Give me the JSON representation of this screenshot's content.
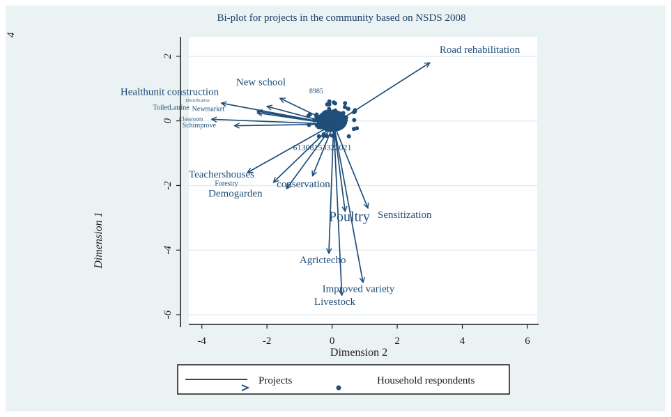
{
  "chart_data": {
    "type": "scatter",
    "subtype": "biplot",
    "title": "Bi-plot for projects in the community based on NSDS 2008",
    "xlabel": "Dimension 2",
    "ylabel": "Dimension 1",
    "xlim": [
      -4.4,
      6.3
    ],
    "ylim": [
      -6.3,
      2.6
    ],
    "x_ticks": [
      -4,
      -2,
      0,
      2,
      4,
      6
    ],
    "x_tick_labels": [
      "-4",
      "-2",
      "0",
      "2",
      "4",
      "6"
    ],
    "y_ticks": [
      -6,
      -4,
      -2,
      0,
      2
    ],
    "y_tick_labels": [
      "-6",
      "-4",
      "-2",
      "0",
      "2"
    ],
    "top_left_tick_label": "4",
    "grid": true,
    "legend_placement": "bottom",
    "colors": {
      "series": "#1f4e79",
      "background": "#eaf2f3",
      "plot_background": "#ffffff",
      "grid": "#e3ecee"
    },
    "series": [
      {
        "name": "Projects",
        "marker": "arrow"
      },
      {
        "name": "Household respondents",
        "marker": "dot"
      }
    ],
    "projects": [
      {
        "label": "Road rehabilitation",
        "x": 3.0,
        "y": 1.8,
        "label_x": 3.3,
        "label_y": 2.1,
        "font_size": 15
      },
      {
        "label": "New school",
        "x": -1.6,
        "y": 0.7,
        "label_x": -2.95,
        "label_y": 1.1,
        "font_size": 15
      },
      {
        "label": "Healthunit construction",
        "x": -3.4,
        "y": 0.55,
        "label_x": -6.5,
        "label_y": 0.8,
        "font_size": 15
      },
      {
        "label": "Electrification",
        "x": -2.0,
        "y": 0.45,
        "label_x": -4.5,
        "label_y": 0.6,
        "font_size": 6
      },
      {
        "label": "ToiletLatrine",
        "x": -2.3,
        "y": 0.3,
        "label_x": -5.5,
        "label_y": 0.35,
        "font_size": 10
      },
      {
        "label": "Newmarket",
        "x": -2.3,
        "y": 0.25,
        "label_x": -4.3,
        "label_y": 0.3,
        "font_size": 10
      },
      {
        "label": "Classroom",
        "x": -3.7,
        "y": 0.05,
        "label_x": -4.7,
        "label_y": 0.0,
        "font_size": 8
      },
      {
        "label": "Schimprove",
        "x": -3.0,
        "y": -0.15,
        "label_x": -4.6,
        "label_y": -0.2,
        "font_size": 10
      },
      {
        "label": "Teachershouses",
        "x": -2.6,
        "y": -1.6,
        "label_x": -4.4,
        "label_y": -1.75,
        "font_size": 15
      },
      {
        "label": "Forestry",
        "x": -1.8,
        "y": -1.9,
        "label_x": -3.6,
        "label_y": -2.0,
        "font_size": 10
      },
      {
        "label": "Demogarden",
        "x": -1.4,
        "y": -2.1,
        "label_x": -3.8,
        "label_y": -2.35,
        "font_size": 15
      },
      {
        "label": "conservation",
        "x": -0.6,
        "y": -1.7,
        "label_x": -1.7,
        "label_y": -2.05,
        "font_size": 15
      },
      {
        "label": "Sensitization",
        "x": 1.1,
        "y": -2.7,
        "label_x": 1.4,
        "label_y": -3.0,
        "font_size": 15
      },
      {
        "label": "Poultry",
        "x": 0.4,
        "y": -2.8,
        "label_x": -0.1,
        "label_y": -3.1,
        "font_size": 20
      },
      {
        "label": "Agrictecho",
        "x": -0.1,
        "y": -4.1,
        "label_x": -1.0,
        "label_y": -4.4,
        "font_size": 15
      },
      {
        "label": "Improved variety",
        "x": 0.95,
        "y": -5.0,
        "label_x": -0.3,
        "label_y": -5.3,
        "font_size": 15
      },
      {
        "label": "Livestock",
        "x": 0.3,
        "y": -5.4,
        "label_x": -0.55,
        "label_y": -5.7,
        "font_size": 15
      }
    ],
    "respondent_labels": [
      {
        "text": "8985",
        "x": -0.7,
        "y": 0.85,
        "font_size": 10
      },
      {
        "text": "61308153322021",
        "x": -1.2,
        "y": -0.9,
        "font_size": 12
      }
    ]
  }
}
